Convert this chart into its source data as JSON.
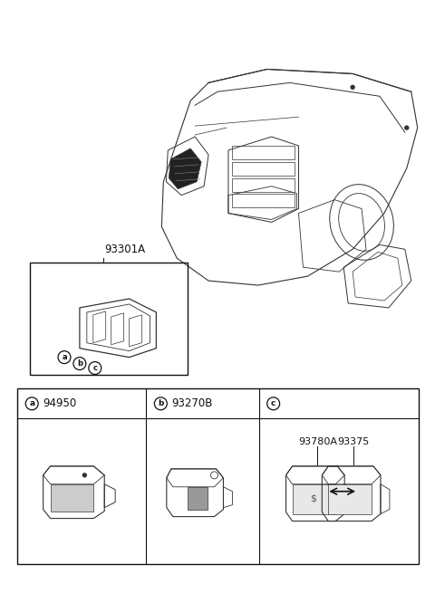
{
  "bg_color": "#ffffff",
  "line_color": "#333333",
  "dark_color": "#111111",
  "gray_color": "#888888",
  "fig_width": 4.8,
  "fig_height": 6.55,
  "dpi": 100,
  "label_93301A": "93301A",
  "label_94950": "94950",
  "label_93270B": "93270B",
  "label_93780A": "93780A",
  "label_93375": "93375",
  "label_a": "a",
  "label_b": "b",
  "label_c": "c"
}
